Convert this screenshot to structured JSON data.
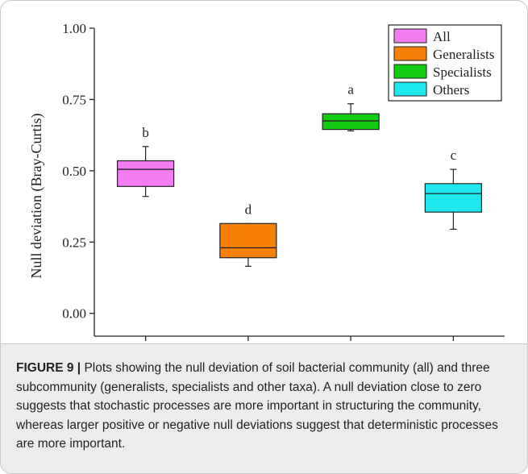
{
  "figure": {
    "label": "FIGURE 9 |",
    "caption": " Plots showing the null deviation of soil bacterial community (all) and three subcommunity (generalists, specialists and other taxa). A null deviation close to zero suggests that stochastic processes are more important in structuring the community, whereas larger positive or negative null deviations suggest that deterministic processes are more important."
  },
  "chart_data": {
    "type": "box",
    "title": "",
    "xlabel": "",
    "ylabel": "Null deviation (Bray-Curtis)",
    "ylim": [
      -0.08,
      1.0
    ],
    "yticks": [
      "0.00",
      "0.25",
      "0.50",
      "0.75",
      "1.00"
    ],
    "ytick_values": [
      0.0,
      0.25,
      0.5,
      0.75,
      1.0
    ],
    "legend_position": "top-right",
    "series": [
      {
        "name": "All",
        "color": "#f27cf0",
        "stats": {
          "min": 0.41,
          "q1": 0.445,
          "median": 0.505,
          "q3": 0.535,
          "max": 0.585
        },
        "letter": "b"
      },
      {
        "name": "Generalists",
        "color": "#f98007",
        "stats": {
          "min": 0.165,
          "q1": 0.195,
          "median": 0.23,
          "q3": 0.315,
          "max": 0.315
        },
        "letter": "d"
      },
      {
        "name": "Specialists",
        "color": "#12cc12",
        "stats": {
          "min": 0.64,
          "q1": 0.645,
          "median": 0.675,
          "q3": 0.7,
          "max": 0.735
        },
        "letter": "a"
      },
      {
        "name": "Others",
        "color": "#1de8ee",
        "stats": {
          "min": 0.295,
          "q1": 0.355,
          "median": 0.42,
          "q3": 0.455,
          "max": 0.505
        },
        "letter": "c"
      }
    ]
  }
}
